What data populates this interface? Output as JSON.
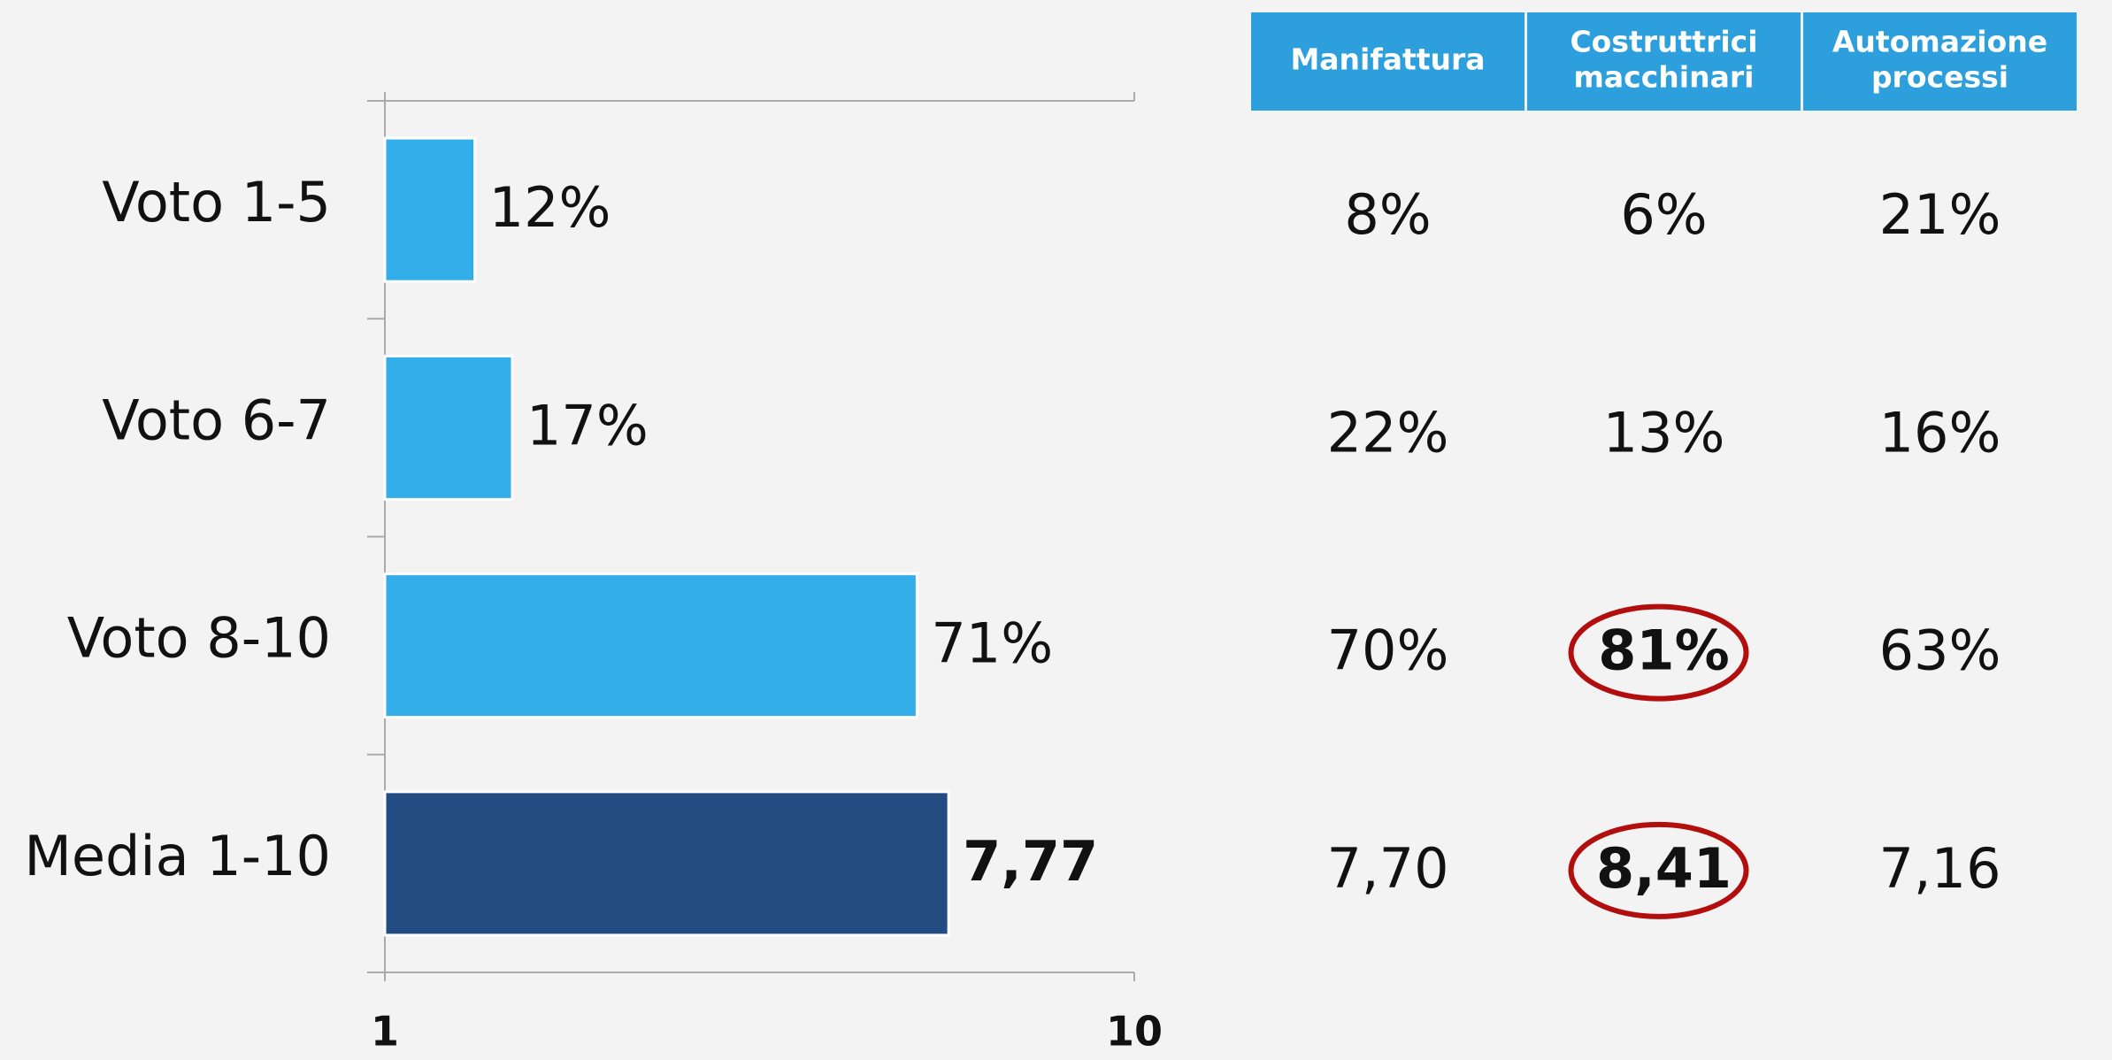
{
  "chart_data": {
    "type": "bar",
    "orientation": "horizontal",
    "categories": [
      "Voto 1-5",
      "Voto 6-7",
      "Voto 8-10",
      "Media 1-10"
    ],
    "values": [
      12,
      17,
      71,
      7.77
    ],
    "value_labels": [
      "12%",
      "17%",
      "71%",
      "7,77"
    ],
    "colors": [
      "#33aee9",
      "#33aee9",
      "#33aee9",
      "#224c82"
    ],
    "xlim": [
      1,
      10
    ],
    "xticks": [
      1,
      10
    ]
  },
  "table": {
    "headers": [
      [
        "Manifattura"
      ],
      [
        "Costruttrici",
        "macchinari"
      ],
      [
        "Automazione",
        "processi"
      ]
    ],
    "rows": [
      [
        "8%",
        "6%",
        "21%"
      ],
      [
        "22%",
        "13%",
        "16%"
      ],
      [
        "70%",
        "81%",
        "63%"
      ],
      [
        "7,70",
        "8,41",
        "7,16"
      ]
    ]
  }
}
